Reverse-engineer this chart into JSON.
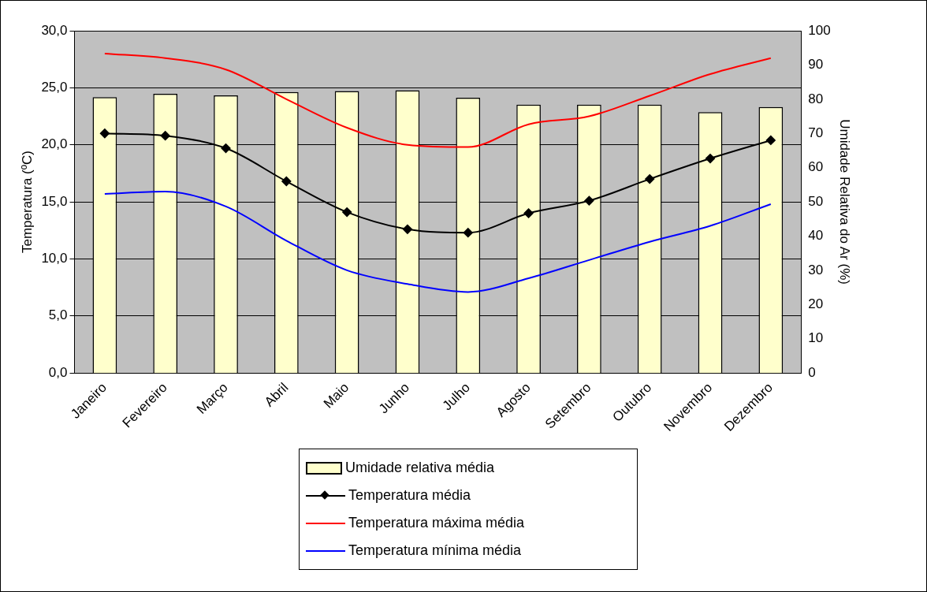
{
  "chart_data": {
    "type": "bar",
    "ylabel": "Temperatura (ºC)",
    "y2label": "Umidade Relativa do Ar (%)",
    "categories": [
      "Janeiro",
      "Fevereiro",
      "Março",
      "Abril",
      "Maio",
      "Junho",
      "Julho",
      "Agosto",
      "Setembro",
      "Outubro",
      "Novembro",
      "Dezembro"
    ],
    "series": [
      {
        "name": "Umidade relativa média",
        "axis": "y2",
        "color": "#ffffcc",
        "values": [
          80.6,
          81.6,
          81.1,
          82.1,
          82.4,
          82.6,
          80.4,
          78.4,
          78.4,
          78.4,
          76.2,
          77.7
        ]
      },
      {
        "name": "Temperatura média",
        "type": "line",
        "marker": "diamond",
        "color": "#000000",
        "values": [
          21.0,
          20.8,
          19.7,
          16.8,
          14.1,
          12.6,
          12.3,
          14.0,
          15.1,
          17.0,
          18.8,
          20.4
        ]
      },
      {
        "name": "Temperatura máxima média",
        "type": "line",
        "marker": "none",
        "color": "#ff0000",
        "values": [
          28.0,
          27.6,
          26.6,
          24.0,
          21.5,
          20.0,
          19.8,
          21.8,
          22.5,
          24.3,
          26.2,
          27.6
        ]
      },
      {
        "name": "Temperatura mínima média",
        "type": "line",
        "marker": "none",
        "color": "#0000ff",
        "values": [
          15.7,
          15.9,
          14.6,
          11.6,
          9.0,
          7.8,
          7.1,
          8.3,
          9.9,
          11.5,
          12.9,
          14.8
        ]
      }
    ],
    "ylim": [
      0,
      30
    ],
    "yticks": [
      {
        "value": 0,
        "label": "0,0"
      },
      {
        "value": 5,
        "label": "5,0"
      },
      {
        "value": 10,
        "label": "10,0"
      },
      {
        "value": 15,
        "label": "15,0"
      },
      {
        "value": 20,
        "label": "20,0"
      },
      {
        "value": 25,
        "label": "25,0"
      },
      {
        "value": 30,
        "label": "30,0"
      }
    ],
    "y2lim": [
      0,
      100
    ],
    "y2ticks": [
      0,
      10,
      20,
      30,
      40,
      50,
      60,
      70,
      80,
      90,
      100
    ],
    "grid": "y",
    "legend": "bottom"
  }
}
